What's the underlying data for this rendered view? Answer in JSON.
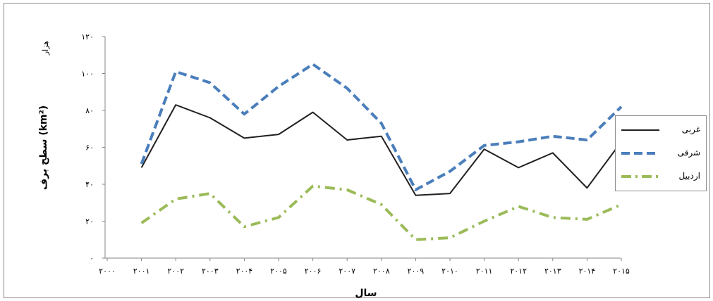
{
  "chart_data": {
    "type": "line",
    "x_tick_labels": [
      "۲۰۰۰",
      "۲۰۰۱",
      "۲۰۰۲",
      "۲۰۰۳",
      "۲۰۰۴",
      "۲۰۰۵",
      "۲۰۰۶",
      "۲۰۰۷",
      "۲۰۰۸",
      "۲۰۰۹",
      "۲۰۱۰",
      "۲۰۱۱",
      "۲۰۱۲",
      "۲۰۱۳",
      "۲۰۱۴",
      "۲۰۱۵"
    ],
    "x": [
      2001,
      2002,
      2003,
      2004,
      2005,
      2006,
      2007,
      2008,
      2009,
      2010,
      2011,
      2012,
      2013,
      2014,
      2015
    ],
    "y_tick_labels": [
      "۰",
      "۲۰",
      "۴۰",
      "۶۰",
      "۸۰",
      "۱۰۰",
      "۱۲۰"
    ],
    "ylim": [
      0,
      120
    ],
    "xlabel": "سال",
    "ylabel": "سطح برف (km²)",
    "yunit": "هزار",
    "legend_position": "right",
    "grid": false,
    "series": [
      {
        "name": "غربی",
        "color": "#231f20",
        "style": "solid",
        "values": [
          49,
          83,
          76,
          65,
          67,
          79,
          64,
          66,
          34,
          35,
          59,
          49,
          57,
          38,
          63
        ]
      },
      {
        "name": "شرقی",
        "color": "#4a7ebb",
        "style": "dashed",
        "values": [
          51,
          101,
          95,
          78,
          93,
          105,
          92,
          73,
          37,
          47,
          61,
          63,
          66,
          64,
          82
        ]
      },
      {
        "name": "اردبیل",
        "color": "#9bbb59",
        "style": "dashdot",
        "values": [
          19,
          32,
          35,
          17,
          22,
          39,
          37,
          29,
          10,
          11,
          20,
          28,
          22,
          21,
          29
        ]
      }
    ]
  }
}
